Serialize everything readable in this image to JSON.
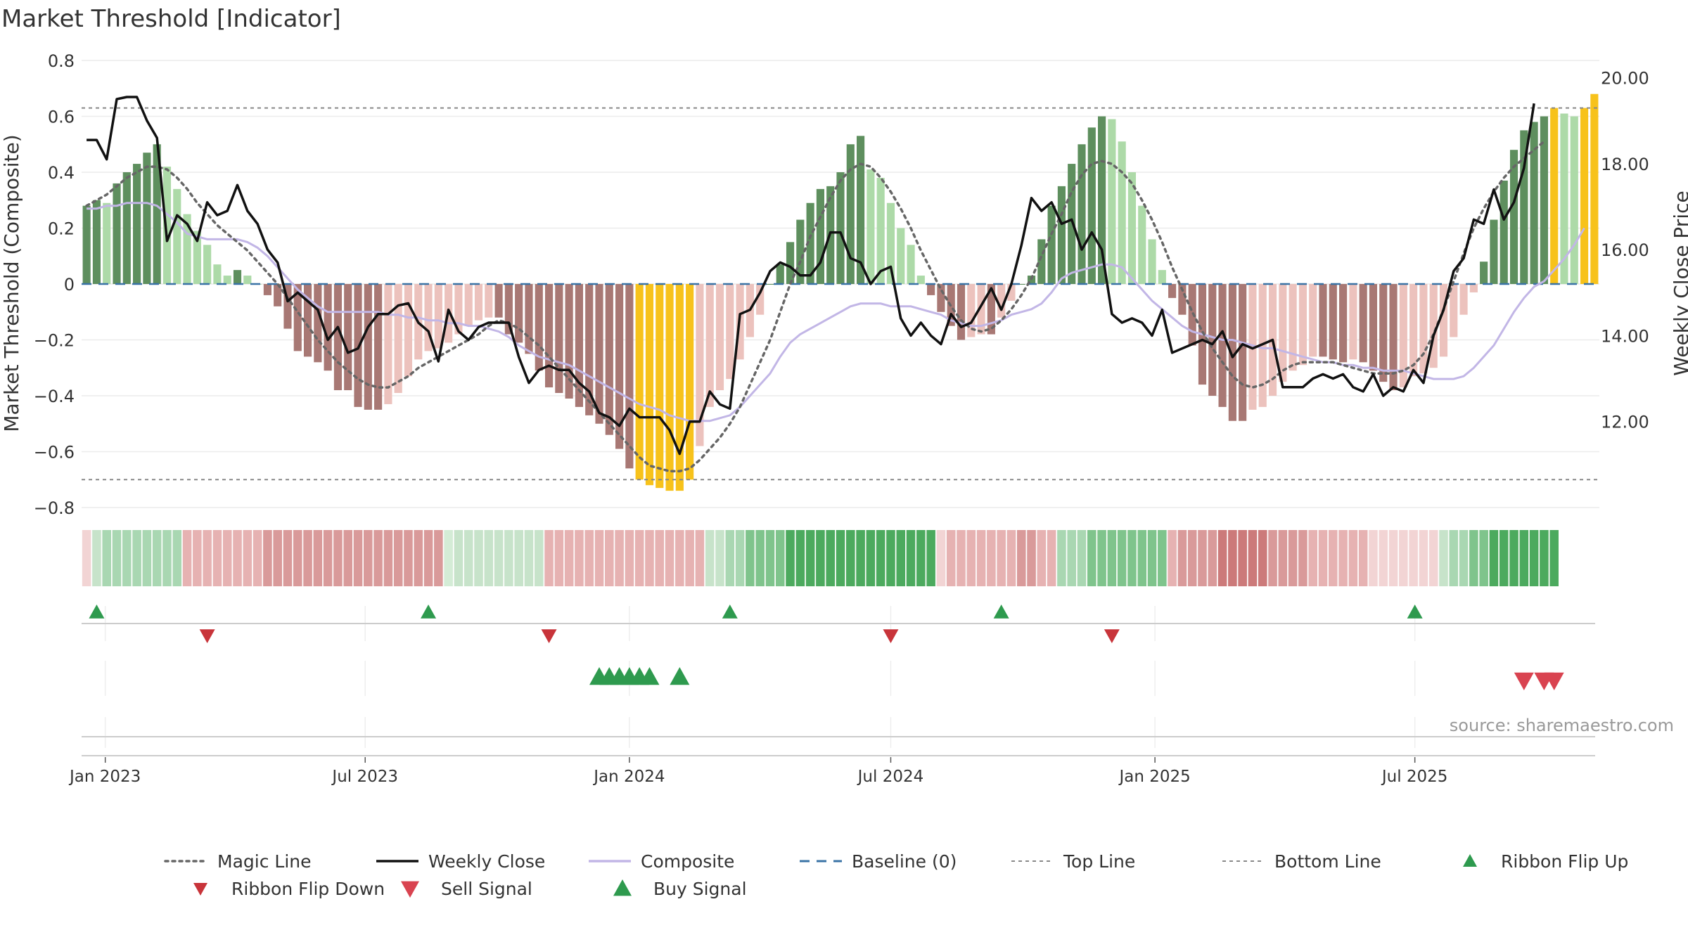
{
  "chart_data": {
    "type": "bar",
    "title": "Market Threshold [Indicator]",
    "source": "source: sharemaestro.com",
    "ylabel_left": "Market Threshold (Composite)",
    "ylabel_right": "Weekly Close Price",
    "ylim_left": [
      -0.8,
      0.8
    ],
    "ylim_right": [
      10.0,
      20.4
    ],
    "yticks_left": [
      {
        "value": 0.8,
        "label": "0.8"
      },
      {
        "value": 0.6,
        "label": "0.6"
      },
      {
        "value": 0.4,
        "label": "0.4"
      },
      {
        "value": 0.2,
        "label": "0.2"
      },
      {
        "value": 0,
        "label": "0"
      },
      {
        "value": -0.2,
        "label": "−0.2"
      },
      {
        "value": -0.4,
        "label": "−0.4"
      },
      {
        "value": -0.6,
        "label": "−0.6"
      },
      {
        "value": -0.8,
        "label": "−0.8"
      }
    ],
    "yticks_right": [
      {
        "value": 20,
        "label": "20.00"
      },
      {
        "value": 18,
        "label": "18.00"
      },
      {
        "value": 16,
        "label": "16.00"
      },
      {
        "value": 14,
        "label": "14.00"
      },
      {
        "value": 12,
        "label": "12.00"
      }
    ],
    "xticks": [
      {
        "date": "2023-01-01",
        "label": "Jan 2023"
      },
      {
        "date": "2023-07-01",
        "label": "Jul 2023"
      },
      {
        "date": "2024-01-01",
        "label": "Jan 2024"
      },
      {
        "date": "2024-07-01",
        "label": "Jul 2024"
      },
      {
        "date": "2025-01-01",
        "label": "Jan 2025"
      },
      {
        "date": "2025-07-01",
        "label": "Jul 2025"
      }
    ],
    "start_date": "2022-12-19",
    "top_line": 0.63,
    "bottom_line": -0.7,
    "baseline": 0,
    "colors": {
      "pos_dark": "#5e8f5e",
      "pos_light": "#addaa8",
      "neg_dark": "#a87874",
      "neg_light": "#ecc2bd",
      "extreme": "#f7c21b",
      "magic": "#666666",
      "close": "#111111",
      "composite": "#c2b6e6",
      "baseline": "#3a73a6",
      "ref_line": "#888888",
      "buy": "#2e9a4e",
      "sell": "#d94350",
      "flip_down": "#c8343a"
    },
    "composite_bars": [
      0.28,
      0.3,
      0.29,
      0.36,
      0.4,
      0.43,
      0.47,
      0.5,
      0.42,
      0.34,
      0.25,
      0.19,
      0.14,
      0.07,
      0.03,
      0.05,
      0.03,
      0.0,
      -0.04,
      -0.08,
      -0.16,
      -0.24,
      -0.26,
      -0.28,
      -0.31,
      -0.38,
      -0.38,
      -0.44,
      -0.45,
      -0.45,
      -0.43,
      -0.39,
      -0.33,
      -0.27,
      -0.24,
      -0.23,
      -0.21,
      -0.18,
      -0.15,
      -0.13,
      -0.12,
      -0.12,
      -0.18,
      -0.21,
      -0.25,
      -0.31,
      -0.37,
      -0.39,
      -0.41,
      -0.44,
      -0.47,
      -0.5,
      -0.54,
      -0.59,
      -0.66,
      -0.7,
      -0.72,
      -0.73,
      -0.74,
      -0.74,
      -0.7,
      -0.58,
      -0.44,
      -0.38,
      -0.34,
      -0.27,
      -0.19,
      -0.11,
      0.0,
      0.07,
      0.15,
      0.23,
      0.29,
      0.34,
      0.35,
      0.4,
      0.5,
      0.53,
      0.41,
      0.38,
      0.29,
      0.2,
      0.14,
      0.03,
      -0.04,
      -0.1,
      -0.15,
      -0.2,
      -0.19,
      -0.18,
      -0.18,
      -0.12,
      -0.06,
      0.0,
      0.03,
      0.16,
      0.28,
      0.35,
      0.43,
      0.5,
      0.56,
      0.6,
      0.59,
      0.51,
      0.4,
      0.28,
      0.16,
      0.05,
      -0.05,
      -0.11,
      -0.22,
      -0.36,
      -0.4,
      -0.44,
      -0.49,
      -0.49,
      -0.45,
      -0.44,
      -0.4,
      -0.35,
      -0.31,
      -0.29,
      -0.26,
      -0.26,
      -0.27,
      -0.28,
      -0.27,
      -0.28,
      -0.31,
      -0.35,
      -0.38,
      -0.37,
      -0.33,
      -0.32,
      -0.3,
      -0.26,
      -0.19,
      -0.11,
      -0.03,
      0.08,
      0.23,
      0.37,
      0.48,
      0.55,
      0.58,
      0.6,
      0.63,
      0.61,
      0.6,
      0.63,
      0.68
    ],
    "magic_line": [
      0.28,
      0.3,
      0.32,
      0.35,
      0.38,
      0.4,
      0.42,
      0.42,
      0.41,
      0.38,
      0.34,
      0.29,
      0.25,
      0.21,
      0.18,
      0.15,
      0.12,
      0.08,
      0.04,
      0.0,
      -0.05,
      -0.1,
      -0.15,
      -0.2,
      -0.24,
      -0.28,
      -0.31,
      -0.34,
      -0.36,
      -0.37,
      -0.37,
      -0.35,
      -0.33,
      -0.3,
      -0.28,
      -0.26,
      -0.24,
      -0.22,
      -0.2,
      -0.18,
      -0.15,
      -0.13,
      -0.14,
      -0.16,
      -0.19,
      -0.22,
      -0.26,
      -0.3,
      -0.34,
      -0.38,
      -0.42,
      -0.46,
      -0.5,
      -0.54,
      -0.58,
      -0.62,
      -0.65,
      -0.66,
      -0.67,
      -0.67,
      -0.66,
      -0.63,
      -0.59,
      -0.55,
      -0.5,
      -0.44,
      -0.36,
      -0.28,
      -0.2,
      -0.1,
      0.0,
      0.08,
      0.17,
      0.24,
      0.31,
      0.37,
      0.41,
      0.43,
      0.42,
      0.38,
      0.33,
      0.27,
      0.2,
      0.12,
      0.05,
      -0.02,
      -0.08,
      -0.13,
      -0.16,
      -0.17,
      -0.16,
      -0.13,
      -0.09,
      -0.04,
      0.02,
      0.1,
      0.18,
      0.25,
      0.33,
      0.39,
      0.43,
      0.44,
      0.43,
      0.4,
      0.36,
      0.3,
      0.23,
      0.15,
      0.06,
      -0.02,
      -0.1,
      -0.17,
      -0.23,
      -0.28,
      -0.33,
      -0.36,
      -0.37,
      -0.36,
      -0.34,
      -0.31,
      -0.29,
      -0.28,
      -0.28,
      -0.28,
      -0.28,
      -0.29,
      -0.3,
      -0.31,
      -0.32,
      -0.32,
      -0.32,
      -0.31,
      -0.29,
      -0.25,
      -0.18,
      -0.09,
      0.01,
      0.11,
      0.2,
      0.27,
      0.33,
      0.38,
      0.42,
      0.45,
      0.48,
      0.51
    ],
    "composite_line": [
      0.27,
      0.27,
      0.28,
      0.28,
      0.29,
      0.29,
      0.29,
      0.28,
      0.25,
      0.22,
      0.18,
      0.17,
      0.16,
      0.16,
      0.16,
      0.16,
      0.15,
      0.13,
      0.1,
      0.06,
      0.02,
      -0.02,
      -0.05,
      -0.08,
      -0.1,
      -0.1,
      -0.1,
      -0.1,
      -0.1,
      -0.1,
      -0.11,
      -0.11,
      -0.12,
      -0.12,
      -0.13,
      -0.13,
      -0.14,
      -0.14,
      -0.15,
      -0.15,
      -0.16,
      -0.17,
      -0.19,
      -0.22,
      -0.24,
      -0.26,
      -0.27,
      -0.28,
      -0.29,
      -0.31,
      -0.33,
      -0.35,
      -0.37,
      -0.39,
      -0.41,
      -0.43,
      -0.44,
      -0.45,
      -0.47,
      -0.48,
      -0.49,
      -0.49,
      -0.49,
      -0.48,
      -0.47,
      -0.44,
      -0.4,
      -0.36,
      -0.32,
      -0.26,
      -0.21,
      -0.18,
      -0.16,
      -0.14,
      -0.12,
      -0.1,
      -0.08,
      -0.07,
      -0.07,
      -0.07,
      -0.08,
      -0.08,
      -0.08,
      -0.09,
      -0.1,
      -0.11,
      -0.13,
      -0.14,
      -0.15,
      -0.15,
      -0.14,
      -0.13,
      -0.11,
      -0.1,
      -0.09,
      -0.07,
      -0.03,
      0.02,
      0.04,
      0.05,
      0.06,
      0.07,
      0.07,
      0.06,
      0.02,
      -0.02,
      -0.06,
      -0.09,
      -0.12,
      -0.15,
      -0.17,
      -0.18,
      -0.19,
      -0.2,
      -0.2,
      -0.21,
      -0.22,
      -0.23,
      -0.23,
      -0.24,
      -0.25,
      -0.26,
      -0.27,
      -0.28,
      -0.28,
      -0.29,
      -0.29,
      -0.3,
      -0.3,
      -0.31,
      -0.31,
      -0.31,
      -0.32,
      -0.33,
      -0.34,
      -0.34,
      -0.34,
      -0.33,
      -0.3,
      -0.26,
      -0.22,
      -0.16,
      -0.1,
      -0.05,
      -0.01,
      0.01,
      0.05,
      0.09,
      0.14,
      0.2
    ],
    "weekly_close": [
      18.55,
      18.55,
      18.1,
      19.5,
      19.55,
      19.55,
      19.0,
      18.6,
      16.2,
      16.8,
      16.6,
      16.2,
      17.1,
      16.8,
      16.9,
      17.5,
      16.9,
      16.6,
      16.0,
      15.7,
      14.8,
      15.0,
      14.8,
      14.6,
      13.9,
      14.2,
      13.6,
      13.7,
      14.2,
      14.5,
      14.5,
      14.7,
      14.75,
      14.3,
      14.1,
      13.4,
      14.6,
      14.1,
      13.9,
      14.2,
      14.3,
      14.3,
      14.3,
      13.5,
      12.9,
      13.2,
      13.3,
      13.2,
      13.2,
      12.9,
      12.7,
      12.2,
      12.1,
      11.9,
      12.3,
      12.1,
      12.1,
      12.1,
      11.8,
      11.25,
      12.0,
      12.0,
      12.7,
      12.4,
      12.3,
      14.5,
      14.6,
      15.0,
      15.5,
      15.7,
      15.6,
      15.4,
      15.4,
      15.7,
      16.4,
      16.4,
      15.8,
      15.7,
      15.2,
      15.5,
      15.6,
      14.4,
      14.0,
      14.3,
      14.0,
      13.8,
      14.5,
      14.2,
      14.3,
      14.7,
      15.1,
      14.6,
      15.2,
      16.1,
      17.2,
      16.9,
      17.1,
      16.6,
      16.7,
      16.0,
      16.4,
      16.0,
      14.5,
      14.3,
      14.4,
      14.3,
      14.0,
      14.6,
      13.6,
      13.7,
      13.8,
      13.9,
      13.8,
      14.1,
      13.5,
      13.8,
      13.7,
      13.8,
      13.9,
      12.8,
      12.8,
      12.8,
      13.0,
      13.1,
      13.0,
      13.1,
      12.8,
      12.7,
      13.1,
      12.6,
      12.8,
      12.7,
      13.2,
      12.9,
      14.0,
      14.6,
      15.5,
      15.8,
      16.7,
      16.6,
      17.4,
      16.7,
      17.1,
      17.9,
      19.4
    ]
  },
  "ribbon_colors": [
    "#f2d4d4",
    "#c7e3ca",
    "#a9d7b2",
    "#a9d7b2",
    "#a9d7b2",
    "#a9d7b2",
    "#a9d7b2",
    "#a9d7b2",
    "#a9d7b2",
    "#a9d7b2",
    "#e6b2b2",
    "#e6b2b2",
    "#e6b2b2",
    "#e6b2b2",
    "#e6b2b2",
    "#e6b2b2",
    "#e6b2b2",
    "#e6b2b2",
    "#d99a9a",
    "#d99a9a",
    "#d99a9a",
    "#d99a9a",
    "#d99a9a",
    "#d99a9a",
    "#d99a9a",
    "#d99a9a",
    "#d99a9a",
    "#d99a9a",
    "#d99a9a",
    "#d99a9a",
    "#d99a9a",
    "#d99a9a",
    "#d99a9a",
    "#d99a9a",
    "#d99a9a",
    "#d99a9a",
    "#d4ecd6",
    "#c7e3ca",
    "#c7e3ca",
    "#c7e3ca",
    "#c7e3ca",
    "#c7e3ca",
    "#c7e3ca",
    "#c7e3ca",
    "#c7e3ca",
    "#c7e3ca",
    "#e6b2b2",
    "#e6b2b2",
    "#e6b2b2",
    "#e6b2b2",
    "#e6b2b2",
    "#e6b2b2",
    "#e6b2b2",
    "#e6b2b2",
    "#e6b2b2",
    "#e6b2b2",
    "#e6b2b2",
    "#e6b2b2",
    "#e6b2b2",
    "#e6b2b2",
    "#e6b2b2",
    "#e6b2b2",
    "#c7e3ca",
    "#c7e3ca",
    "#a9d7b2",
    "#a9d7b2",
    "#7fc48c",
    "#7fc48c",
    "#7fc48c",
    "#7fc48c",
    "#4caa5e",
    "#4caa5e",
    "#4caa5e",
    "#4caa5e",
    "#4caa5e",
    "#4caa5e",
    "#4caa5e",
    "#4caa5e",
    "#4caa5e",
    "#4caa5e",
    "#4caa5e",
    "#4caa5e",
    "#4caa5e",
    "#4caa5e",
    "#4caa5e",
    "#f2d4d4",
    "#e6b2b2",
    "#e6b2b2",
    "#e6b2b2",
    "#e6b2b2",
    "#e6b2b2",
    "#e6b2b2",
    "#e6b2b2",
    "#d99a9a",
    "#d99a9a",
    "#e6b2b2",
    "#e6b2b2",
    "#a9d7b2",
    "#a9d7b2",
    "#a9d7b2",
    "#7fc48c",
    "#7fc48c",
    "#7fc48c",
    "#7fc48c",
    "#7fc48c",
    "#7fc48c",
    "#7fc48c",
    "#7fc48c",
    "#e6b2b2",
    "#d99a9a",
    "#d99a9a",
    "#d99a9a",
    "#d99a9a",
    "#cc7a7a",
    "#cc7a7a",
    "#cc7a7a",
    "#cc7a7a",
    "#cc7a7a",
    "#d99a9a",
    "#d99a9a",
    "#d99a9a",
    "#d99a9a",
    "#e6b2b2",
    "#e6b2b2",
    "#e6b2b2",
    "#e6b2b2",
    "#e6b2b2",
    "#e6b2b2",
    "#f2d4d4",
    "#f2d4d4",
    "#f2d4d4",
    "#f2d4d4",
    "#f2d4d4",
    "#f2d4d4",
    "#f2d4d4",
    "#c7e3ca",
    "#a9d7b2",
    "#a9d7b2",
    "#7fc48c",
    "#7fc48c",
    "#4caa5e",
    "#4caa5e",
    "#4caa5e",
    "#4caa5e",
    "#4caa5e",
    "#4caa5e",
    "#4caa5e"
  ],
  "signals": {
    "ribbon_flip_up": [
      "2022-12-26",
      "2023-08-14",
      "2024-03-11",
      "2024-09-16",
      "2025-07-01"
    ],
    "ribbon_flip_down": [
      "2023-03-13",
      "2023-11-06",
      "2024-07-01",
      "2024-12-02"
    ],
    "buy_signal": [
      "2023-12-11",
      "2023-12-18",
      "2023-12-25",
      "2024-01-01",
      "2024-01-08",
      "2024-01-15",
      "2024-02-05"
    ],
    "sell_signal": [
      "2025-09-15",
      "2025-09-29",
      "2025-10-06"
    ]
  },
  "legend": [
    {
      "key": "magic",
      "label": "Magic Line",
      "kind": "dotted",
      "color": "#666666"
    },
    {
      "key": "close",
      "label": "Weekly Close",
      "kind": "solid",
      "color": "#111111"
    },
    {
      "key": "composite",
      "label": "Composite",
      "kind": "solid",
      "color": "#c2b6e6"
    },
    {
      "key": "baseline",
      "label": "Baseline (0)",
      "kind": "dashed",
      "color": "#3a73a6"
    },
    {
      "key": "top",
      "label": "Top Line",
      "kind": "dotted-thin",
      "color": "#888888"
    },
    {
      "key": "bottom",
      "label": "Bottom Line",
      "kind": "dotted-thin",
      "color": "#888888"
    },
    {
      "key": "flip_up",
      "label": "Ribbon Flip Up",
      "kind": "tri-up",
      "color": "#2e9a4e"
    },
    {
      "key": "flip_down",
      "label": "Ribbon Flip Down",
      "kind": "tri-down",
      "color": "#c8343a"
    },
    {
      "key": "sell",
      "label": "Sell Signal",
      "kind": "tri-down-big",
      "color": "#d94350"
    },
    {
      "key": "buy",
      "label": "Buy Signal",
      "kind": "tri-up-big",
      "color": "#2e9a4e"
    }
  ]
}
